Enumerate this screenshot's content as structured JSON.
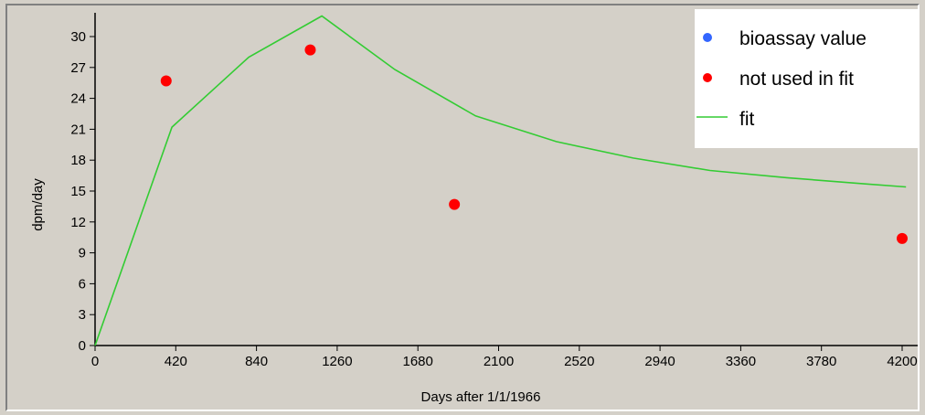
{
  "chart_data": {
    "type": "scatter",
    "title": "",
    "xlabel": "Days after 1/1/1966",
    "ylabel": "dpm/day",
    "xlim": [
      0,
      4220
    ],
    "ylim": [
      0,
      30
    ],
    "x_ticks": [
      0,
      420,
      840,
      1260,
      1680,
      2100,
      2520,
      2940,
      3360,
      3780,
      4200
    ],
    "y_ticks": [
      0,
      3,
      6,
      9,
      12,
      15,
      18,
      21,
      24,
      27,
      30
    ],
    "grid": false,
    "legend_position": "top-right",
    "legend": [
      {
        "label": "bioassay value",
        "marker": "dot",
        "color": "#3366ff"
      },
      {
        "label": "not used in fit",
        "marker": "dot",
        "color": "#ff0000"
      },
      {
        "label": "fit",
        "marker": "line",
        "color": "#33cc33"
      }
    ],
    "series": [
      {
        "name": "not used in fit",
        "kind": "points",
        "color": "#ff0000",
        "points": [
          {
            "x": 370,
            "y": 25.7
          },
          {
            "x": 1120,
            "y": 28.7
          },
          {
            "x": 1870,
            "y": 13.7
          },
          {
            "x": 4200,
            "y": 10.4
          }
        ]
      },
      {
        "name": "fit",
        "kind": "line",
        "color": "#33cc33",
        "points": [
          {
            "x": 0,
            "y": 0
          },
          {
            "x": 400,
            "y": 21.2
          },
          {
            "x": 800,
            "y": 28.0
          },
          {
            "x": 1180,
            "y": 32.0
          },
          {
            "x": 1560,
            "y": 26.8
          },
          {
            "x": 1980,
            "y": 22.3
          },
          {
            "x": 2400,
            "y": 19.8
          },
          {
            "x": 2800,
            "y": 18.2
          },
          {
            "x": 3200,
            "y": 17.0
          },
          {
            "x": 3600,
            "y": 16.3
          },
          {
            "x": 4000,
            "y": 15.7
          },
          {
            "x": 4220,
            "y": 15.4
          }
        ]
      }
    ]
  }
}
